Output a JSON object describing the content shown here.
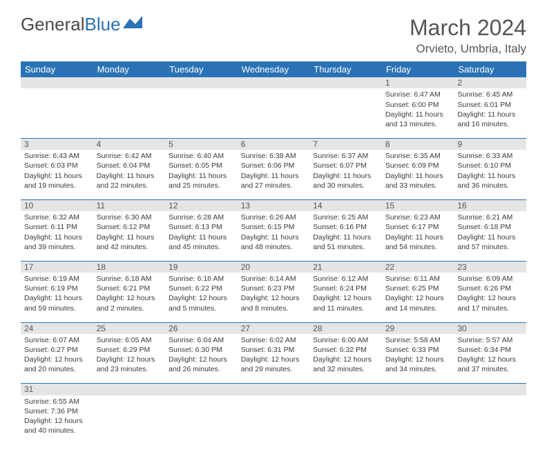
{
  "logo": {
    "general": "General",
    "blue": "Blue"
  },
  "title": "March 2024",
  "location": "Orvieto, Umbria, Italy",
  "colors": {
    "header_bg": "#2a72b5",
    "header_text": "#ffffff",
    "daynum_bg": "#e5e5e5",
    "border": "#2a72b5",
    "text": "#3a3a3a"
  },
  "weekdays": [
    "Sunday",
    "Monday",
    "Tuesday",
    "Wednesday",
    "Thursday",
    "Friday",
    "Saturday"
  ],
  "weeks": [
    [
      null,
      null,
      null,
      null,
      null,
      {
        "n": "1",
        "sr": "Sunrise: 6:47 AM",
        "ss": "Sunset: 6:00 PM",
        "dl": "Daylight: 11 hours and 13 minutes."
      },
      {
        "n": "2",
        "sr": "Sunrise: 6:45 AM",
        "ss": "Sunset: 6:01 PM",
        "dl": "Daylight: 11 hours and 16 minutes."
      }
    ],
    [
      {
        "n": "3",
        "sr": "Sunrise: 6:43 AM",
        "ss": "Sunset: 6:03 PM",
        "dl": "Daylight: 11 hours and 19 minutes."
      },
      {
        "n": "4",
        "sr": "Sunrise: 6:42 AM",
        "ss": "Sunset: 6:04 PM",
        "dl": "Daylight: 11 hours and 22 minutes."
      },
      {
        "n": "5",
        "sr": "Sunrise: 6:40 AM",
        "ss": "Sunset: 6:05 PM",
        "dl": "Daylight: 11 hours and 25 minutes."
      },
      {
        "n": "6",
        "sr": "Sunrise: 6:38 AM",
        "ss": "Sunset: 6:06 PM",
        "dl": "Daylight: 11 hours and 27 minutes."
      },
      {
        "n": "7",
        "sr": "Sunrise: 6:37 AM",
        "ss": "Sunset: 6:07 PM",
        "dl": "Daylight: 11 hours and 30 minutes."
      },
      {
        "n": "8",
        "sr": "Sunrise: 6:35 AM",
        "ss": "Sunset: 6:09 PM",
        "dl": "Daylight: 11 hours and 33 minutes."
      },
      {
        "n": "9",
        "sr": "Sunrise: 6:33 AM",
        "ss": "Sunset: 6:10 PM",
        "dl": "Daylight: 11 hours and 36 minutes."
      }
    ],
    [
      {
        "n": "10",
        "sr": "Sunrise: 6:32 AM",
        "ss": "Sunset: 6:11 PM",
        "dl": "Daylight: 11 hours and 39 minutes."
      },
      {
        "n": "11",
        "sr": "Sunrise: 6:30 AM",
        "ss": "Sunset: 6:12 PM",
        "dl": "Daylight: 11 hours and 42 minutes."
      },
      {
        "n": "12",
        "sr": "Sunrise: 6:28 AM",
        "ss": "Sunset: 6:13 PM",
        "dl": "Daylight: 11 hours and 45 minutes."
      },
      {
        "n": "13",
        "sr": "Sunrise: 6:26 AM",
        "ss": "Sunset: 6:15 PM",
        "dl": "Daylight: 11 hours and 48 minutes."
      },
      {
        "n": "14",
        "sr": "Sunrise: 6:25 AM",
        "ss": "Sunset: 6:16 PM",
        "dl": "Daylight: 11 hours and 51 minutes."
      },
      {
        "n": "15",
        "sr": "Sunrise: 6:23 AM",
        "ss": "Sunset: 6:17 PM",
        "dl": "Daylight: 11 hours and 54 minutes."
      },
      {
        "n": "16",
        "sr": "Sunrise: 6:21 AM",
        "ss": "Sunset: 6:18 PM",
        "dl": "Daylight: 11 hours and 57 minutes."
      }
    ],
    [
      {
        "n": "17",
        "sr": "Sunrise: 6:19 AM",
        "ss": "Sunset: 6:19 PM",
        "dl": "Daylight: 11 hours and 59 minutes."
      },
      {
        "n": "18",
        "sr": "Sunrise: 6:18 AM",
        "ss": "Sunset: 6:21 PM",
        "dl": "Daylight: 12 hours and 2 minutes."
      },
      {
        "n": "19",
        "sr": "Sunrise: 6:16 AM",
        "ss": "Sunset: 6:22 PM",
        "dl": "Daylight: 12 hours and 5 minutes."
      },
      {
        "n": "20",
        "sr": "Sunrise: 6:14 AM",
        "ss": "Sunset: 6:23 PM",
        "dl": "Daylight: 12 hours and 8 minutes."
      },
      {
        "n": "21",
        "sr": "Sunrise: 6:12 AM",
        "ss": "Sunset: 6:24 PM",
        "dl": "Daylight: 12 hours and 11 minutes."
      },
      {
        "n": "22",
        "sr": "Sunrise: 6:11 AM",
        "ss": "Sunset: 6:25 PM",
        "dl": "Daylight: 12 hours and 14 minutes."
      },
      {
        "n": "23",
        "sr": "Sunrise: 6:09 AM",
        "ss": "Sunset: 6:26 PM",
        "dl": "Daylight: 12 hours and 17 minutes."
      }
    ],
    [
      {
        "n": "24",
        "sr": "Sunrise: 6:07 AM",
        "ss": "Sunset: 6:27 PM",
        "dl": "Daylight: 12 hours and 20 minutes."
      },
      {
        "n": "25",
        "sr": "Sunrise: 6:05 AM",
        "ss": "Sunset: 6:29 PM",
        "dl": "Daylight: 12 hours and 23 minutes."
      },
      {
        "n": "26",
        "sr": "Sunrise: 6:04 AM",
        "ss": "Sunset: 6:30 PM",
        "dl": "Daylight: 12 hours and 26 minutes."
      },
      {
        "n": "27",
        "sr": "Sunrise: 6:02 AM",
        "ss": "Sunset: 6:31 PM",
        "dl": "Daylight: 12 hours and 29 minutes."
      },
      {
        "n": "28",
        "sr": "Sunrise: 6:00 AM",
        "ss": "Sunset: 6:32 PM",
        "dl": "Daylight: 12 hours and 32 minutes."
      },
      {
        "n": "29",
        "sr": "Sunrise: 5:58 AM",
        "ss": "Sunset: 6:33 PM",
        "dl": "Daylight: 12 hours and 34 minutes."
      },
      {
        "n": "30",
        "sr": "Sunrise: 5:57 AM",
        "ss": "Sunset: 6:34 PM",
        "dl": "Daylight: 12 hours and 37 minutes."
      }
    ],
    [
      {
        "n": "31",
        "sr": "Sunrise: 6:55 AM",
        "ss": "Sunset: 7:36 PM",
        "dl": "Daylight: 12 hours and 40 minutes."
      },
      null,
      null,
      null,
      null,
      null,
      null
    ]
  ]
}
